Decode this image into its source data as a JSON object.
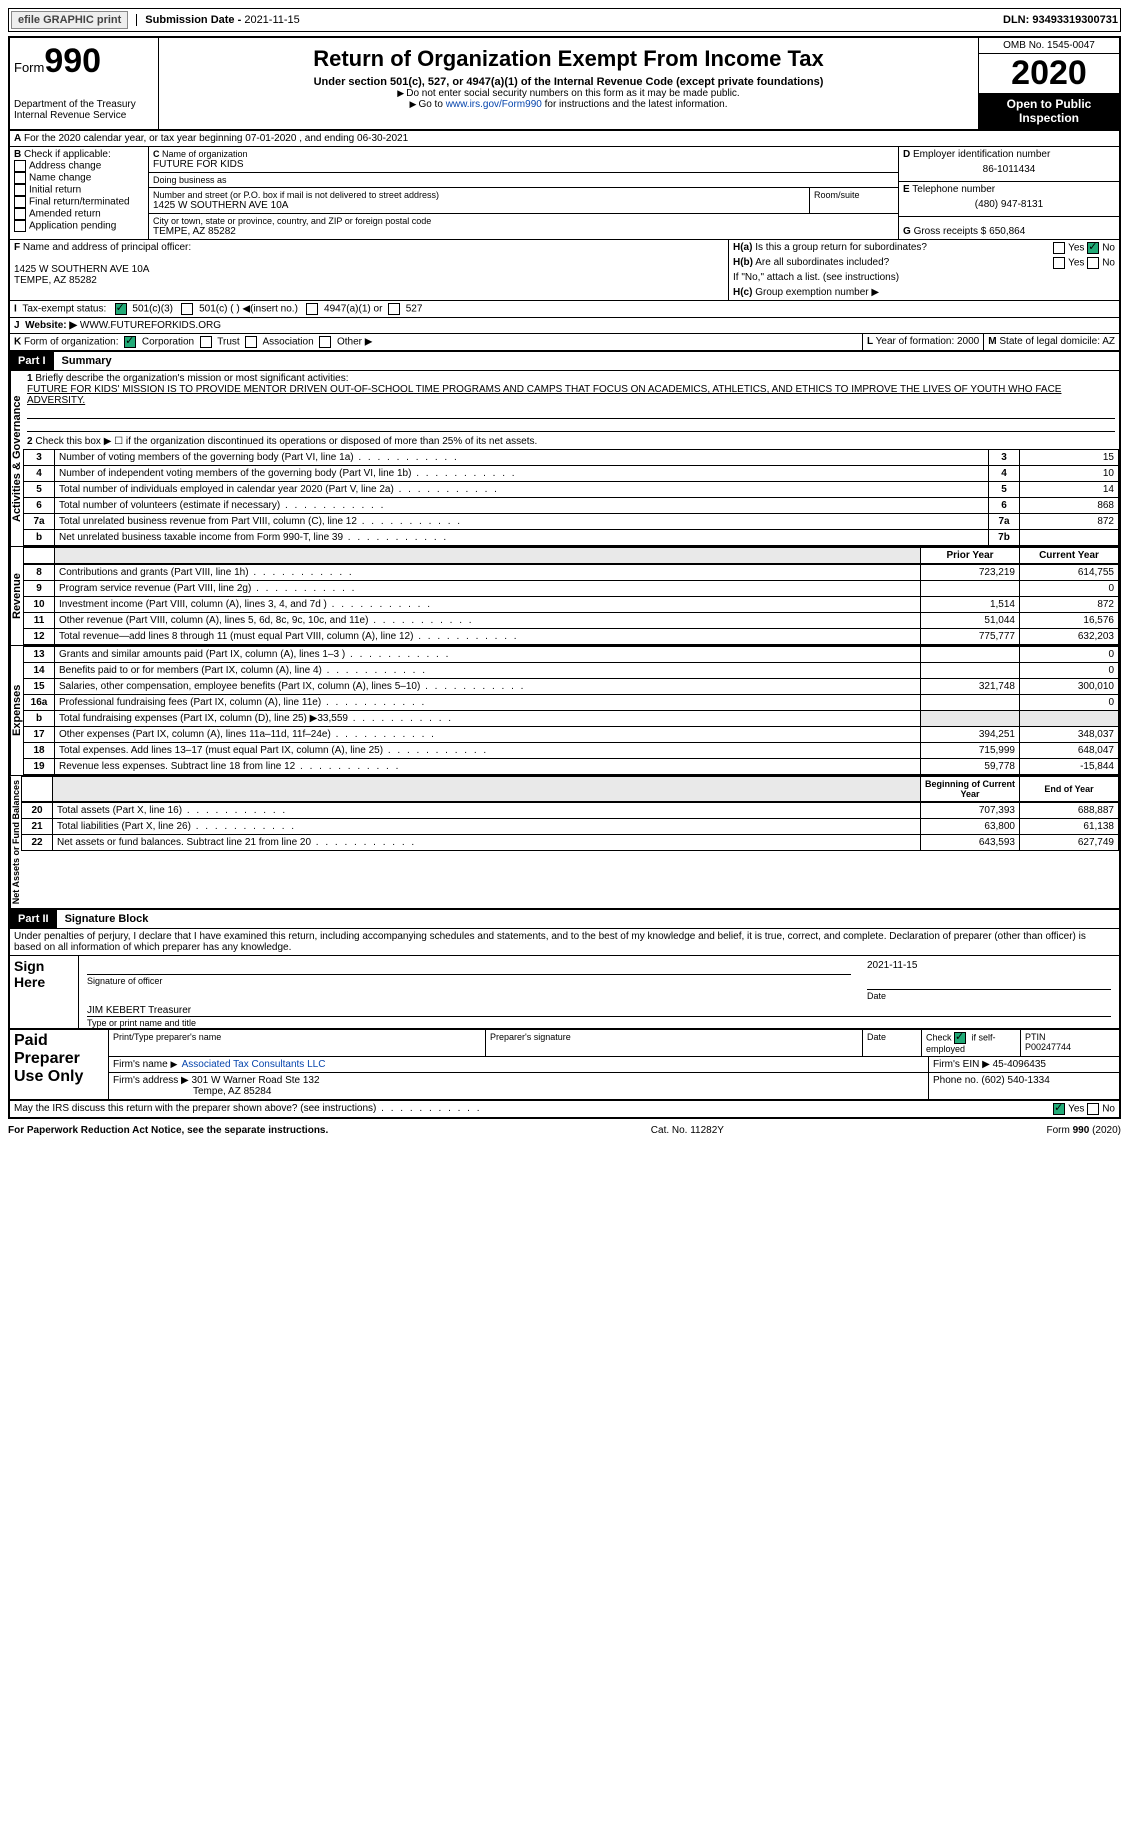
{
  "topbar": {
    "efile": "efile GRAPHIC print",
    "sub_lbl": "Submission Date - ",
    "sub_date": "2021-11-15",
    "dln_lbl": "DLN: ",
    "dln": "93493319300731"
  },
  "hdr": {
    "form_word": "Form",
    "form_num": "990",
    "dept": "Department of the Treasury",
    "irs": "Internal Revenue Service",
    "title": "Return of Organization Exempt From Income Tax",
    "sub1": "Under section 501(c), 527, or 4947(a)(1) of the Internal Revenue Code (except private foundations)",
    "sub2": "Do not enter social security numbers on this form as it may be made public.",
    "sub3_pre": "Go to ",
    "sub3_link": "www.irs.gov/Form990",
    "sub3_post": " for instructions and the latest information.",
    "omb": "OMB No. 1545-0047",
    "year": "2020",
    "inspect1": "Open to Public",
    "inspect2": "Inspection"
  },
  "A": {
    "text": "For the 2020 calendar year, or tax year beginning 07-01-2020    , and ending 06-30-2021"
  },
  "B": {
    "hdr": "Check if applicable:",
    "opts": [
      "Address change",
      "Name change",
      "Initial return",
      "Final return/terminated",
      "Amended return",
      "Application pending"
    ]
  },
  "C": {
    "lbl": "Name of organization",
    "name": "FUTURE FOR KIDS",
    "dba": "Doing business as",
    "addr_lbl": "Number and street (or P.O. box if mail is not delivered to street address)",
    "room": "Room/suite",
    "addr": "1425 W SOUTHERN AVE 10A",
    "city_lbl": "City or town, state or province, country, and ZIP or foreign postal code",
    "city": "TEMPE, AZ  85282"
  },
  "D": {
    "lbl": "Employer identification number",
    "v": "86-1011434"
  },
  "E": {
    "lbl": "Telephone number",
    "v": "(480) 947-8131"
  },
  "G": {
    "lbl": "Gross receipts $",
    "v": "650,864"
  },
  "F": {
    "lbl": "Name and address of principal officer:",
    "addr1": "1425 W SOUTHERN AVE 10A",
    "addr2": "TEMPE, AZ  85282"
  },
  "H": {
    "a": "Is this a group return for subordinates?",
    "a_yes": "Yes",
    "a_no": "No",
    "b": "Are all subordinates included?",
    "b_yes": "Yes",
    "b_no": "No",
    "b_note": "If \"No,\" attach a list. (see instructions)",
    "c": "Group exemption number ▶"
  },
  "I": {
    "lbl": "Tax-exempt status:",
    "o1": "501(c)(3)",
    "o2": "501(c) (  ) ◀(insert no.)",
    "o3": "4947(a)(1) or",
    "o4": "527"
  },
  "J": {
    "lbl": "Website: ▶",
    "v": "WWW.FUTUREFORKIDS.ORG"
  },
  "K": {
    "lbl": "Form of organization:",
    "o1": "Corporation",
    "o2": "Trust",
    "o3": "Association",
    "o4": "Other ▶"
  },
  "L": {
    "lbl": "Year of formation: ",
    "v": "2000"
  },
  "M": {
    "lbl": "State of legal domicile: ",
    "v": "AZ"
  },
  "part1": {
    "hdr": "Part I",
    "title": "Summary"
  },
  "mission": {
    "lbl": "Briefly describe the organization's mission or most significant activities:",
    "txt": "FUTURE FOR KIDS' MISSION IS TO PROVIDE MENTOR DRIVEN OUT-OF-SCHOOL TIME PROGRAMS AND CAMPS THAT FOCUS ON ACADEMICS, ATHLETICS, AND ETHICS TO IMPROVE THE LIVES OF YOUTH WHO FACE ADVERSITY."
  },
  "line2": "Check this box ▶ ☐  if the organization discontinued its operations or disposed of more than 25% of its net assets.",
  "gov": {
    "label": "Activities & Governance",
    "rows": [
      {
        "n": "3",
        "t": "Number of voting members of the governing body (Part VI, line 1a)",
        "rn": "3",
        "v": "15"
      },
      {
        "n": "4",
        "t": "Number of independent voting members of the governing body (Part VI, line 1b)",
        "rn": "4",
        "v": "10"
      },
      {
        "n": "5",
        "t": "Total number of individuals employed in calendar year 2020 (Part V, line 2a)",
        "rn": "5",
        "v": "14"
      },
      {
        "n": "6",
        "t": "Total number of volunteers (estimate if necessary)",
        "rn": "6",
        "v": "868"
      },
      {
        "n": "7a",
        "t": "Total unrelated business revenue from Part VIII, column (C), line 12",
        "rn": "7a",
        "v": "872"
      },
      {
        "n": "b",
        "t": "Net unrelated business taxable income from Form 990-T, line 39",
        "rn": "7b",
        "v": ""
      }
    ]
  },
  "rev": {
    "label": "Revenue",
    "hdr_prior": "Prior Year",
    "hdr_curr": "Current Year",
    "rows": [
      {
        "n": "8",
        "t": "Contributions and grants (Part VIII, line 1h)",
        "p": "723,219",
        "c": "614,755"
      },
      {
        "n": "9",
        "t": "Program service revenue (Part VIII, line 2g)",
        "p": "",
        "c": "0"
      },
      {
        "n": "10",
        "t": "Investment income (Part VIII, column (A), lines 3, 4, and 7d )",
        "p": "1,514",
        "c": "872"
      },
      {
        "n": "11",
        "t": "Other revenue (Part VIII, column (A), lines 5, 6d, 8c, 9c, 10c, and 11e)",
        "p": "51,044",
        "c": "16,576"
      },
      {
        "n": "12",
        "t": "Total revenue—add lines 8 through 11 (must equal Part VIII, column (A), line 12)",
        "p": "775,777",
        "c": "632,203"
      }
    ]
  },
  "exp": {
    "label": "Expenses",
    "rows": [
      {
        "n": "13",
        "t": "Grants and similar amounts paid (Part IX, column (A), lines 1–3 )",
        "p": "",
        "c": "0"
      },
      {
        "n": "14",
        "t": "Benefits paid to or for members (Part IX, column (A), line 4)",
        "p": "",
        "c": "0"
      },
      {
        "n": "15",
        "t": "Salaries, other compensation, employee benefits (Part IX, column (A), lines 5–10)",
        "p": "321,748",
        "c": "300,010"
      },
      {
        "n": "16a",
        "t": "Professional fundraising fees (Part IX, column (A), line 11e)",
        "p": "",
        "c": "0"
      },
      {
        "n": "b",
        "t": "Total fundraising expenses (Part IX, column (D), line 25) ▶33,559",
        "p": "grey",
        "c": "grey"
      },
      {
        "n": "17",
        "t": "Other expenses (Part IX, column (A), lines 11a–11d, 11f–24e)",
        "p": "394,251",
        "c": "348,037"
      },
      {
        "n": "18",
        "t": "Total expenses. Add lines 13–17 (must equal Part IX, column (A), line 25)",
        "p": "715,999",
        "c": "648,047"
      },
      {
        "n": "19",
        "t": "Revenue less expenses. Subtract line 18 from line 12",
        "p": "59,778",
        "c": "-15,844"
      }
    ]
  },
  "net": {
    "label": "Net Assets or Fund Balances",
    "hdr_begin": "Beginning of Current Year",
    "hdr_end": "End of Year",
    "rows": [
      {
        "n": "20",
        "t": "Total assets (Part X, line 16)",
        "p": "707,393",
        "c": "688,887"
      },
      {
        "n": "21",
        "t": "Total liabilities (Part X, line 26)",
        "p": "63,800",
        "c": "61,138"
      },
      {
        "n": "22",
        "t": "Net assets or fund balances. Subtract line 21 from line 20",
        "p": "643,593",
        "c": "627,749"
      }
    ]
  },
  "part2": {
    "hdr": "Part II",
    "title": "Signature Block",
    "decl": "Under penalties of perjury, I declare that I have examined this return, including accompanying schedules and statements, and to the best of my knowledge and belief, it is true, correct, and complete. Declaration of preparer (other than officer) is based on all information of which preparer has any knowledge."
  },
  "sign": {
    "here": "Sign Here",
    "sig_lbl": "Signature of officer",
    "date_lbl": "Date",
    "date": "2021-11-15",
    "name": "JIM KEBERT  Treasurer",
    "name_lbl": "Type or print name and title"
  },
  "prep": {
    "title": "Paid Preparer Use Only",
    "h1": "Print/Type preparer's name",
    "h2": "Preparer's signature",
    "h3": "Date",
    "h4_pre": "Check",
    "h4_post": "if self-employed",
    "h5": "PTIN",
    "ptin": "P00247744",
    "firm_lbl": "Firm's name",
    "firm": "Associated Tax Consultants LLC",
    "ein_lbl": "Firm's EIN ▶",
    "ein": "45-4096435",
    "addr_lbl": "Firm's address ▶",
    "addr1": "301 W Warner Road Ste 132",
    "addr2": "Tempe, AZ  85284",
    "phone_lbl": "Phone no.",
    "phone": "(602) 540-1334"
  },
  "discuss": {
    "q": "May the IRS discuss this return with the preparer shown above? (see instructions)",
    "yes": "Yes",
    "no": "No"
  },
  "footer": {
    "l": "For Paperwork Reduction Act Notice, see the separate instructions.",
    "m": "Cat. No. 11282Y",
    "r": "Form 990 (2020)"
  }
}
